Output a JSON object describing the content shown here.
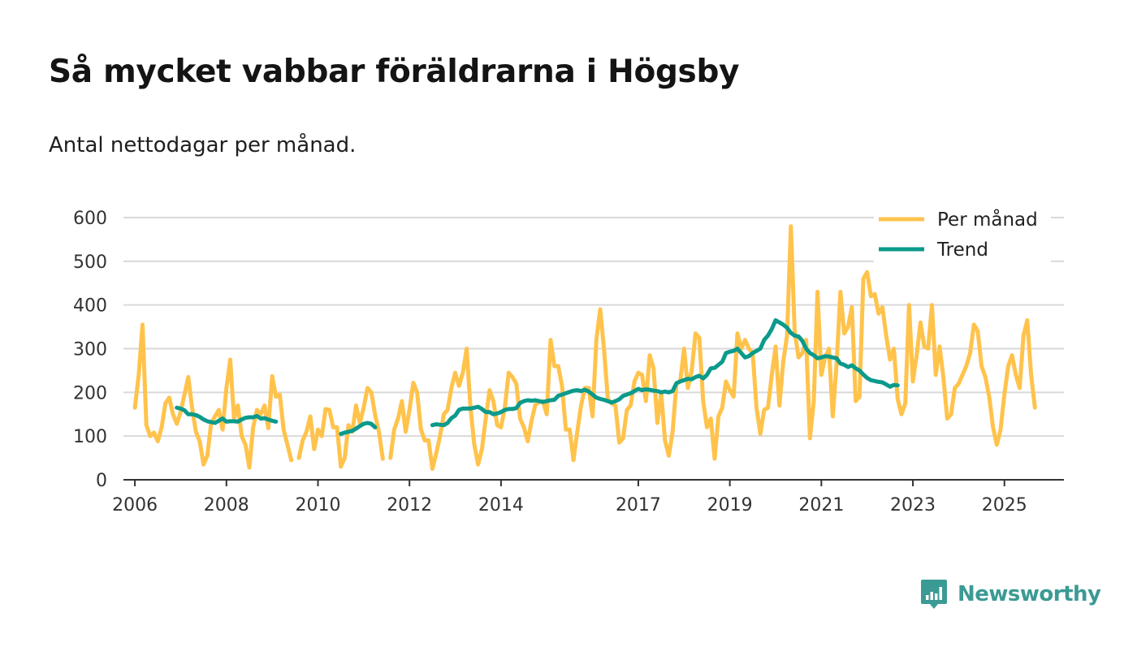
{
  "header": {
    "title": "Så mycket vabbar föräldrarna i Högsby",
    "subtitle": "Antal nettodagar per månad."
  },
  "brand": {
    "name": "Newsworthy"
  },
  "colors": {
    "monthly": "#ffc34c",
    "trend": "#0b9a8b",
    "grid": "#d9d9d9",
    "axis": "#333333"
  },
  "chart_data": {
    "type": "line",
    "title": "Så mycket vabbar föräldrarna i Högsby",
    "subtitle": "Antal nettodagar per månad.",
    "xlabel": "",
    "ylabel": "",
    "ylim": [
      0,
      600
    ],
    "y_ticks": [
      0,
      100,
      200,
      300,
      400,
      500,
      600
    ],
    "x_ticks": [
      {
        "value": 2006.0,
        "label": "2006"
      },
      {
        "value": 2008.0,
        "label": "2008"
      },
      {
        "value": 2010.0,
        "label": "2010"
      },
      {
        "value": 2012.0,
        "label": "2012"
      },
      {
        "value": 2014.0,
        "label": "2014"
      },
      {
        "value": 2017.0,
        "label": "2017"
      },
      {
        "value": 2019.0,
        "label": "2019"
      },
      {
        "value": 2021.0,
        "label": "2021"
      },
      {
        "value": 2023.0,
        "label": "2023"
      },
      {
        "value": 2025.0,
        "label": "2025"
      }
    ],
    "grid": true,
    "legend": "top-right",
    "series": [
      {
        "name": "Per månad",
        "x_start": 2006.0,
        "step": 0.0833333,
        "values": [
          165,
          240,
          355,
          125,
          100,
          108,
          88,
          120,
          175,
          188,
          150,
          128,
          155,
          195,
          235,
          165,
          110,
          88,
          35,
          55,
          130,
          145,
          160,
          115,
          210,
          275,
          140,
          170,
          100,
          80,
          28,
          120,
          160,
          150,
          170,
          118,
          237,
          190,
          195,
          115,
          80,
          45,
          null,
          50,
          90,
          110,
          145,
          70,
          115,
          100,
          162,
          160,
          120,
          120,
          30,
          50,
          125,
          110,
          170,
          130,
          165,
          210,
          200,
          148,
          110,
          48,
          null,
          50,
          115,
          140,
          180,
          110,
          160,
          222,
          200,
          115,
          90,
          90,
          25,
          60,
          100,
          150,
          160,
          210,
          245,
          215,
          245,
          300,
          165,
          80,
          35,
          70,
          140,
          205,
          180,
          125,
          120,
          165,
          245,
          235,
          220,
          140,
          120,
          88,
          135,
          172,
          178,
          180,
          150,
          320,
          260,
          260,
          215,
          115,
          115,
          45,
          110,
          170,
          210,
          210,
          145,
          320,
          390,
          300,
          185,
          175,
          170,
          85,
          95,
          160,
          170,
          225,
          245,
          240,
          180,
          285,
          255,
          130,
          200,
          90,
          55,
          110,
          220,
          225,
          300,
          210,
          250,
          335,
          325,
          180,
          120,
          140,
          48,
          145,
          165,
          225,
          205,
          190,
          335,
          300,
          320,
          300,
          290,
          165,
          105,
          160,
          165,
          240,
          305,
          170,
          270,
          330,
          580,
          340,
          280,
          290,
          320,
          95,
          180,
          430,
          240,
          280,
          300,
          145,
          265,
          430,
          335,
          350,
          395,
          180,
          190,
          460,
          475,
          420,
          425,
          380,
          395,
          330,
          275,
          300,
          185,
          150,
          175,
          400,
          225,
          285,
          360,
          305,
          300,
          400,
          240,
          305,
          235,
          140,
          150,
          210,
          220,
          240,
          260,
          290,
          355,
          340,
          260,
          235,
          190,
          120,
          80,
          115,
          195,
          260,
          285,
          240,
          210,
          330,
          365,
          240,
          165
        ]
      },
      {
        "name": "Trend",
        "segments": [
          {
            "x_start": 2006.9167,
            "step": 0.0833333,
            "values": [
              165,
              163,
              159,
              150,
              150,
              148,
              144,
              138,
              134,
              132,
              130,
              135,
              140,
              133,
              134,
              134,
              133,
              138,
              142,
              143,
              143,
              146,
              140,
              141,
              138,
              135,
              133
            ]
          },
          {
            "x_start": 2010.5,
            "step": 0.0833333,
            "values": [
              105,
              108,
              110,
              112,
              117,
              123,
              128,
              130,
              128,
              120
            ]
          },
          {
            "x_start": 2012.5,
            "step": 0.0833333,
            "values": [
              125,
              127,
              126,
              125,
              130,
              141,
              147,
              160,
              163,
              163,
              163,
              165,
              167,
              162,
              155,
              155,
              150,
              152,
              155,
              160,
              162,
              162,
              164,
              176,
              180,
              182,
              181,
              182,
              180,
              178,
              180,
              182,
              183,
              192,
              195,
              198,
              201,
              204,
              205,
              203,
              206,
              202,
              195,
              188,
              185,
              183,
              180,
              177,
              180,
              184,
              192,
              195,
              198,
              203,
              208,
              205,
              207,
              206,
              204,
              203,
              200,
              202,
              200,
              203,
              221,
              225,
              228,
              231,
              230,
              235,
              238,
              232,
              240,
              255,
              256,
              263,
              270,
              290,
              293,
              295,
              300,
              290,
              280,
              283,
              290,
              295,
              300,
              320,
              330,
              345,
              365,
              360,
              355,
              348,
              336,
              330,
              328,
              318,
              300,
              290,
              285,
              278,
              280,
              283,
              282,
              280,
              278,
              266,
              263,
              258,
              262,
              255,
              250,
              241,
              233,
              228,
              226,
              224,
              223,
              218,
              213,
              217,
              216
            ]
          }
        ]
      }
    ]
  }
}
